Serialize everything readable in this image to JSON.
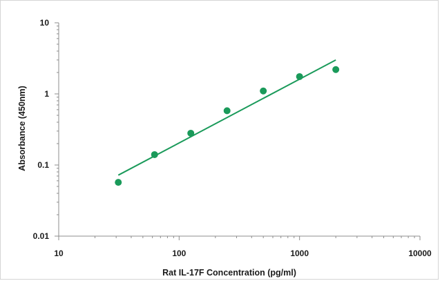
{
  "chart_data": {
    "type": "scatter",
    "title": "",
    "xlabel": "Rat IL-17F Concentration (pg/ml)",
    "ylabel": "Absorbance (450nm)",
    "x_scale": "log",
    "y_scale": "log",
    "xlim": [
      10,
      10000
    ],
    "ylim": [
      0.01,
      10
    ],
    "x_ticks": [
      "10",
      "100",
      "1000",
      "10000"
    ],
    "y_ticks": [
      "10",
      "1",
      "0.1",
      "0.01"
    ],
    "grid": false,
    "legend": "none",
    "series": [
      {
        "type": "scatter",
        "x": [
          31.25,
          62.5,
          125,
          250,
          500,
          1000,
          2000
        ],
        "y": [
          0.057,
          0.14,
          0.28,
          0.58,
          1.1,
          1.75,
          2.2
        ]
      },
      {
        "type": "line",
        "x": [
          31.25,
          2000
        ],
        "y": [
          0.072,
          3.0
        ]
      }
    ],
    "colors": {
      "marker": "#1a9a5a",
      "trendline": "#1a9a5a",
      "axis": "#8c8c8c"
    }
  }
}
